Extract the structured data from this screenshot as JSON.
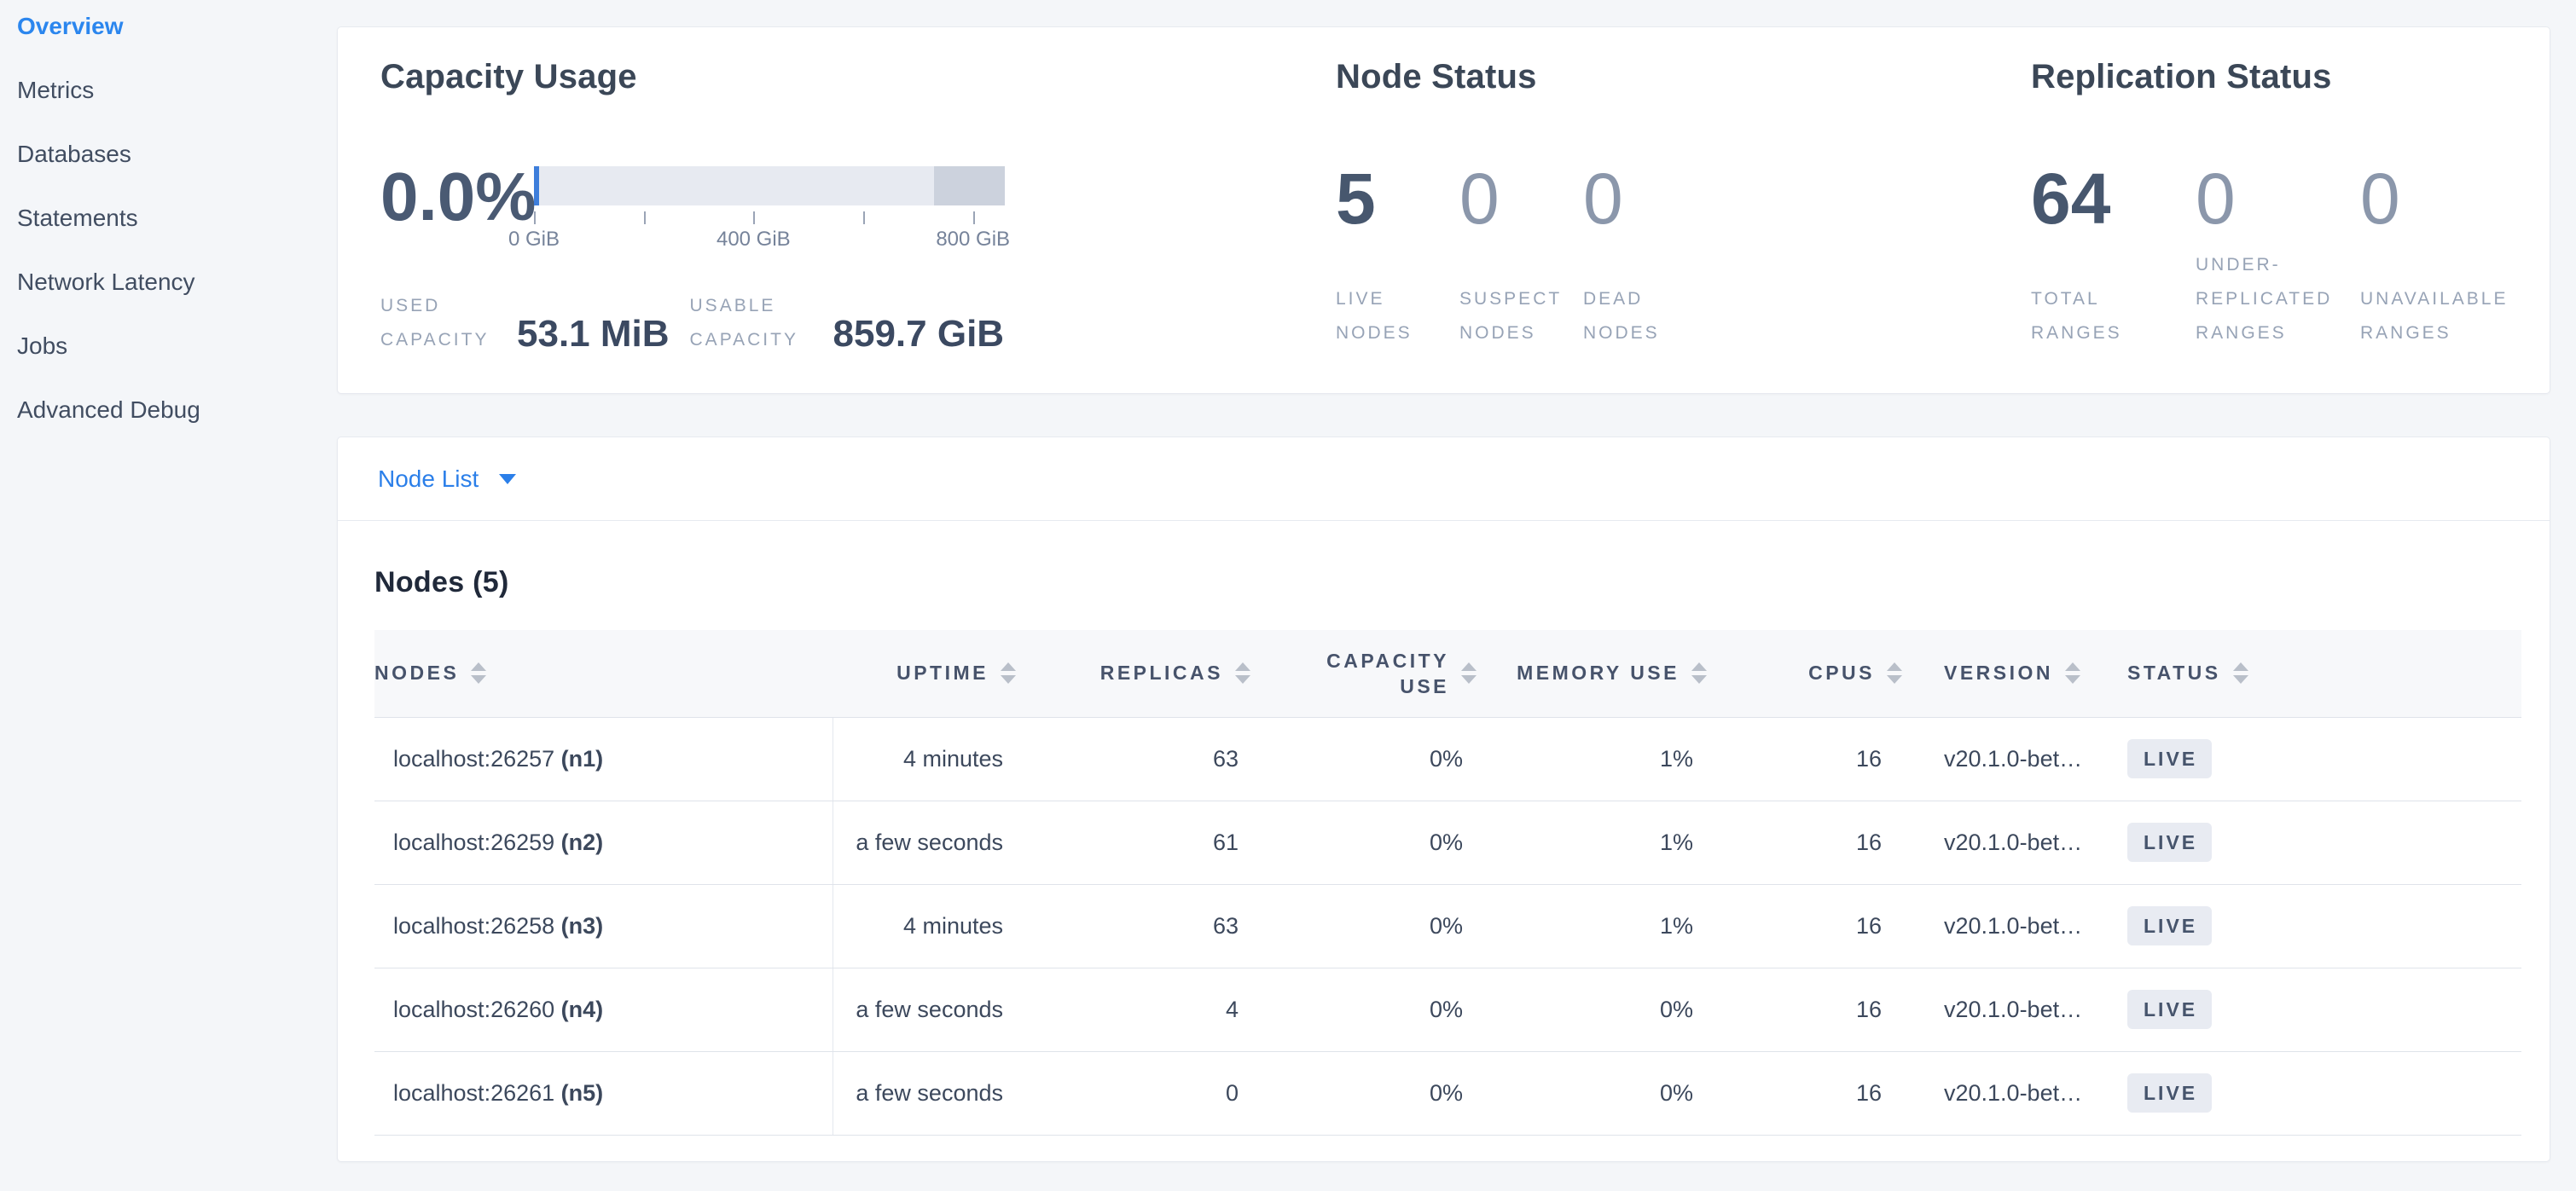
{
  "colors": {
    "accent_blue": "#2b7fe9",
    "bar_track": "#e7eaf1",
    "bar_other": "#ccd2dd",
    "bar_used": "#3e7edb",
    "badge_bg": "#e8ebf2",
    "badge_text": "#46546c"
  },
  "sidebar": {
    "items": [
      {
        "label": "Overview",
        "active": true
      },
      {
        "label": "Metrics",
        "active": false
      },
      {
        "label": "Databases",
        "active": false
      },
      {
        "label": "Statements",
        "active": false
      },
      {
        "label": "Network Latency",
        "active": false
      },
      {
        "label": "Jobs",
        "active": false
      },
      {
        "label": "Advanced Debug",
        "active": false
      }
    ]
  },
  "summary": {
    "capacity": {
      "title": "Capacity Usage",
      "percent": "0.0%",
      "bar": {
        "max_gib": 858,
        "other_pct": 15,
        "ticks": [
          {
            "gib": 0,
            "label": "0 GiB"
          },
          {
            "gib": 200,
            "label": ""
          },
          {
            "gib": 400,
            "label": "400 GiB"
          },
          {
            "gib": 600,
            "label": ""
          },
          {
            "gib": 800,
            "label": "800 GiB"
          }
        ]
      },
      "used": {
        "label": "USED CAPACITY",
        "value": "53.1 MiB"
      },
      "usable": {
        "label": "USABLE CAPACITY",
        "value": "859.7 GiB"
      }
    },
    "node_status": {
      "title": "Node Status",
      "stats": [
        {
          "value": "5",
          "label": "LIVE NODES",
          "dim": false
        },
        {
          "value": "0",
          "label": "SUSPECT NODES",
          "dim": true
        },
        {
          "value": "0",
          "label": "DEAD NODES",
          "dim": true
        }
      ]
    },
    "replication": {
      "title": "Replication Status",
      "stats": [
        {
          "value": "64",
          "label": "TOTAL RANGES",
          "dim": false
        },
        {
          "value": "0",
          "label": "UNDER-REPLICATED RANGES",
          "dim": true
        },
        {
          "value": "0",
          "label": "UNAVAILABLE RANGES",
          "dim": true
        }
      ]
    }
  },
  "node_list": {
    "dropdown_label": "Node List",
    "heading": "Nodes (5)",
    "columns": [
      {
        "key": "nodes",
        "label": "NODES",
        "align": "left",
        "wrap": false
      },
      {
        "key": "uptime",
        "label": "UPTIME",
        "align": "right",
        "wrap": false
      },
      {
        "key": "replicas",
        "label": "REPLICAS",
        "align": "right",
        "wrap": false
      },
      {
        "key": "capacity_use",
        "label": "CAPACITY USE",
        "align": "right",
        "wrap": true
      },
      {
        "key": "memory_use",
        "label": "MEMORY USE",
        "align": "right",
        "wrap": false
      },
      {
        "key": "cpus",
        "label": "CPUS",
        "align": "right",
        "wrap": false
      },
      {
        "key": "version",
        "label": "VERSION",
        "align": "left",
        "wrap": false
      },
      {
        "key": "status",
        "label": "STATUS",
        "align": "left",
        "wrap": false
      }
    ],
    "rows": [
      {
        "node": "localhost:26257",
        "id": "(n1)",
        "uptime": "4 minutes",
        "replicas": "63",
        "capacity_use": "0%",
        "memory_use": "1%",
        "cpus": "16",
        "version": "v20.1.0-bet…",
        "status": "LIVE"
      },
      {
        "node": "localhost:26259",
        "id": "(n2)",
        "uptime": "a few seconds",
        "replicas": "61",
        "capacity_use": "0%",
        "memory_use": "1%",
        "cpus": "16",
        "version": "v20.1.0-bet…",
        "status": "LIVE"
      },
      {
        "node": "localhost:26258",
        "id": "(n3)",
        "uptime": "4 minutes",
        "replicas": "63",
        "capacity_use": "0%",
        "memory_use": "1%",
        "cpus": "16",
        "version": "v20.1.0-bet…",
        "status": "LIVE"
      },
      {
        "node": "localhost:26260",
        "id": "(n4)",
        "uptime": "a few seconds",
        "replicas": "4",
        "capacity_use": "0%",
        "memory_use": "0%",
        "cpus": "16",
        "version": "v20.1.0-bet…",
        "status": "LIVE"
      },
      {
        "node": "localhost:26261",
        "id": "(n5)",
        "uptime": "a few seconds",
        "replicas": "0",
        "capacity_use": "0%",
        "memory_use": "0%",
        "cpus": "16",
        "version": "v20.1.0-bet…",
        "status": "LIVE"
      }
    ]
  }
}
